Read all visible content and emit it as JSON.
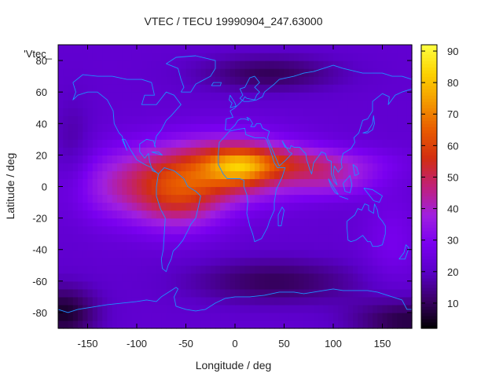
{
  "chart_data": {
    "type": "heatmap",
    "title": "VTEC / TECU 19990904_247.63000",
    "xlabel": "Longitude / deg",
    "ylabel": "Latitude / deg",
    "key_label": "'Vtec_",
    "xlim": [
      -180,
      180
    ],
    "ylim": [
      -90,
      90
    ],
    "xticks": [
      -150,
      -100,
      -50,
      0,
      50,
      100,
      150
    ],
    "yticks": [
      -80,
      -60,
      -40,
      -20,
      0,
      20,
      40,
      60,
      80
    ],
    "colorbar": {
      "min": 2,
      "max": 92,
      "ticks": [
        10,
        20,
        30,
        40,
        50,
        60,
        70,
        80,
        90
      ]
    },
    "colormap": [
      "#000000",
      "#3a0066",
      "#5a00c8",
      "#7a00f0",
      "#a020e0",
      "#c0207a",
      "#d22e12",
      "#e85a00",
      "#f49a00",
      "#fcd200",
      "#ffff40"
    ],
    "coastline_color": "#1e90ff",
    "grid_resolution_deg": 5,
    "background_tec": 22,
    "blobs": [
      {
        "lon": -10,
        "lat": 12,
        "slon": 55,
        "slat": 14,
        "amp": 34
      },
      {
        "lon": 5,
        "lat": 13,
        "slon": 22,
        "slat": 8,
        "amp": 20
      },
      {
        "lon": -55,
        "lat": -8,
        "slon": 32,
        "slat": 14,
        "amp": 22
      },
      {
        "lon": -110,
        "lat": 0,
        "slon": 45,
        "slat": 16,
        "amp": 16
      },
      {
        "lon": 75,
        "lat": 15,
        "slon": 55,
        "slat": 7,
        "amp": 16
      },
      {
        "lon": 100,
        "lat": 3,
        "slon": 32,
        "slat": 7,
        "amp": 12
      },
      {
        "lon": 35,
        "lat": 72,
        "slon": 50,
        "slat": 8,
        "amp": -12
      },
      {
        "lon": 40,
        "lat": -60,
        "slon": 60,
        "slat": 10,
        "amp": -12
      },
      {
        "lon": -175,
        "lat": -80,
        "slon": 25,
        "slat": 12,
        "amp": -16
      },
      {
        "lon": 175,
        "lat": -85,
        "slon": 40,
        "slat": 10,
        "amp": -14
      },
      {
        "lon": -165,
        "lat": 20,
        "slon": 15,
        "slat": 25,
        "amp": -6
      },
      {
        "lon": 160,
        "lat": -35,
        "slon": 20,
        "slat": 20,
        "amp": 6
      }
    ],
    "coastlines": [
      [
        [
          -165,
          66
        ],
        [
          -155,
          71
        ],
        [
          -140,
          70
        ],
        [
          -125,
          70
        ],
        [
          -110,
          68
        ],
        [
          -95,
          68
        ],
        [
          -85,
          66
        ],
        [
          -82,
          58
        ],
        [
          -92,
          58
        ],
        [
          -95,
          52
        ],
        [
          -80,
          52
        ],
        [
          -70,
          60
        ],
        [
          -62,
          58
        ],
        [
          -55,
          52
        ],
        [
          -65,
          45
        ],
        [
          -70,
          42
        ],
        [
          -75,
          36
        ],
        [
          -80,
          32
        ],
        [
          -82,
          26
        ],
        [
          -81,
          25
        ],
        [
          -83,
          29
        ],
        [
          -90,
          30
        ],
        [
          -97,
          27
        ],
        [
          -97,
          22
        ],
        [
          -92,
          18
        ],
        [
          -88,
          21
        ],
        [
          -87,
          16
        ],
        [
          -84,
          10
        ],
        [
          -80,
          9
        ],
        [
          -78,
          8
        ],
        [
          -80,
          9
        ],
        [
          -85,
          12
        ],
        [
          -92,
          14
        ],
        [
          -100,
          17
        ],
        [
          -106,
          23
        ],
        [
          -112,
          30
        ],
        [
          -115,
          30
        ],
        [
          -110,
          23
        ],
        [
          -115,
          32
        ],
        [
          -118,
          34
        ],
        [
          -123,
          40
        ],
        [
          -124,
          48
        ],
        [
          -130,
          55
        ],
        [
          -140,
          60
        ],
        [
          -150,
          60
        ],
        [
          -160,
          58
        ],
        [
          -165,
          55
        ],
        [
          -162,
          60
        ],
        [
          -165,
          66
        ]
      ],
      [
        [
          -78,
          8
        ],
        [
          -72,
          12
        ],
        [
          -62,
          10
        ],
        [
          -52,
          5
        ],
        [
          -48,
          0
        ],
        [
          -40,
          -3
        ],
        [
          -35,
          -6
        ],
        [
          -37,
          -12
        ],
        [
          -40,
          -20
        ],
        [
          -45,
          -24
        ],
        [
          -48,
          -28
        ],
        [
          -53,
          -34
        ],
        [
          -58,
          -38
        ],
        [
          -63,
          -41
        ],
        [
          -65,
          -46
        ],
        [
          -68,
          -50
        ],
        [
          -70,
          -54
        ],
        [
          -74,
          -52
        ],
        [
          -75,
          -46
        ],
        [
          -73,
          -40
        ],
        [
          -72,
          -30
        ],
        [
          -71,
          -20
        ],
        [
          -76,
          -14
        ],
        [
          -80,
          -6
        ],
        [
          -80,
          0
        ],
        [
          -78,
          8
        ]
      ],
      [
        [
          -17,
          21
        ],
        [
          -16,
          28
        ],
        [
          -10,
          32
        ],
        [
          -6,
          35
        ],
        [
          0,
          36
        ],
        [
          10,
          37
        ],
        [
          11,
          33
        ],
        [
          20,
          31
        ],
        [
          30,
          31
        ],
        [
          32,
          30
        ],
        [
          35,
          25
        ],
        [
          40,
          15
        ],
        [
          43,
          12
        ],
        [
          51,
          12
        ],
        [
          48,
          6
        ],
        [
          42,
          -2
        ],
        [
          40,
          -10
        ],
        [
          40,
          -15
        ],
        [
          35,
          -22
        ],
        [
          33,
          -26
        ],
        [
          27,
          -33
        ],
        [
          20,
          -35
        ],
        [
          18,
          -30
        ],
        [
          15,
          -25
        ],
        [
          12,
          -17
        ],
        [
          13,
          -10
        ],
        [
          12,
          -5
        ],
        [
          9,
          0
        ],
        [
          9,
          4
        ],
        [
          5,
          5
        ],
        [
          -2,
          5
        ],
        [
          -8,
          5
        ],
        [
          -12,
          8
        ],
        [
          -17,
          14
        ],
        [
          -17,
          21
        ]
      ],
      [
        [
          -10,
          36
        ],
        [
          -9,
          43
        ],
        [
          -2,
          44
        ],
        [
          -5,
          48
        ],
        [
          0,
          50
        ],
        [
          5,
          53
        ],
        [
          8,
          55
        ],
        [
          10,
          57
        ],
        [
          12,
          56
        ],
        [
          20,
          55
        ],
        [
          22,
          58
        ],
        [
          25,
          60
        ],
        [
          20,
          63
        ],
        [
          25,
          66
        ],
        [
          20,
          70
        ],
        [
          15,
          69
        ],
        [
          10,
          63
        ],
        [
          5,
          62
        ],
        [
          8,
          58
        ],
        [
          5,
          56
        ],
        [
          9,
          54
        ],
        [
          14,
          54
        ],
        [
          22,
          55
        ],
        [
          28,
          57
        ],
        [
          30,
          60
        ],
        [
          40,
          65
        ],
        [
          45,
          68
        ],
        [
          60,
          70
        ],
        [
          70,
          72
        ],
        [
          80,
          73
        ],
        [
          100,
          77
        ],
        [
          110,
          75
        ],
        [
          130,
          72
        ],
        [
          150,
          72
        ],
        [
          160,
          70
        ],
        [
          170,
          70
        ],
        [
          180,
          68
        ]
      ],
      [
        [
          180,
          62
        ],
        [
          170,
          60
        ],
        [
          163,
          58
        ],
        [
          156,
          52
        ],
        [
          157,
          57
        ],
        [
          150,
          59
        ],
        [
          140,
          54
        ],
        [
          140,
          48
        ],
        [
          135,
          43
        ],
        [
          130,
          42
        ],
        [
          128,
          38
        ],
        [
          126,
          34
        ],
        [
          121,
          31
        ],
        [
          122,
          28
        ],
        [
          118,
          24
        ],
        [
          110,
          21
        ],
        [
          108,
          16
        ],
        [
          109,
          12
        ],
        [
          106,
          10
        ],
        [
          105,
          9
        ],
        [
          101,
          13
        ],
        [
          100,
          8
        ],
        [
          104,
          1
        ],
        [
          101,
          3
        ],
        [
          98,
          8
        ],
        [
          98,
          16
        ],
        [
          94,
          17
        ],
        [
          92,
          21
        ],
        [
          88,
          22
        ],
        [
          86,
          20
        ],
        [
          80,
          15
        ],
        [
          78,
          8
        ],
        [
          76,
          11
        ],
        [
          73,
          17
        ],
        [
          72,
          21
        ],
        [
          70,
          22
        ],
        [
          66,
          25
        ],
        [
          60,
          25
        ],
        [
          57,
          26
        ],
        [
          56,
          24
        ],
        [
          51,
          25
        ],
        [
          48,
          29
        ],
        [
          55,
          22
        ],
        [
          58,
          21
        ],
        [
          52,
          17
        ],
        [
          45,
          13
        ],
        [
          43,
          16
        ],
        [
          39,
          22
        ],
        [
          35,
          28
        ],
        [
          33,
          31
        ],
        [
          35,
          35
        ],
        [
          28,
          37
        ],
        [
          26,
          40
        ],
        [
          22,
          40
        ],
        [
          20,
          38
        ],
        [
          16,
          38
        ],
        [
          18,
          40
        ],
        [
          15,
          43
        ],
        [
          12,
          44
        ],
        [
          14,
          42
        ],
        [
          10,
          43
        ],
        [
          6,
          43
        ],
        [
          3,
          42
        ],
        [
          0,
          39
        ],
        [
          -5,
          36
        ],
        [
          -10,
          36
        ]
      ],
      [
        [
          114,
          -22
        ],
        [
          114,
          -26
        ],
        [
          115,
          -34
        ],
        [
          118,
          -35
        ],
        [
          123,
          -34
        ],
        [
          130,
          -31
        ],
        [
          135,
          -35
        ],
        [
          138,
          -35
        ],
        [
          140,
          -38
        ],
        [
          145,
          -38
        ],
        [
          150,
          -37
        ],
        [
          153,
          -30
        ],
        [
          153,
          -25
        ],
        [
          150,
          -22
        ],
        [
          146,
          -19
        ],
        [
          145,
          -15
        ],
        [
          142,
          -11
        ],
        [
          141,
          -17
        ],
        [
          136,
          -15
        ],
        [
          136,
          -12
        ],
        [
          132,
          -11
        ],
        [
          129,
          -15
        ],
        [
          125,
          -14
        ],
        [
          122,
          -18
        ],
        [
          114,
          -22
        ]
      ],
      [
        [
          -55,
          60
        ],
        [
          -45,
          60
        ],
        [
          -40,
          65
        ],
        [
          -25,
          70
        ],
        [
          -20,
          75
        ],
        [
          -20,
          80
        ],
        [
          -40,
          83
        ],
        [
          -60,
          82
        ],
        [
          -70,
          78
        ],
        [
          -58,
          75
        ],
        [
          -55,
          68
        ],
        [
          -52,
          63
        ],
        [
          -55,
          60
        ]
      ],
      [
        [
          130,
          34
        ],
        [
          135,
          34
        ],
        [
          140,
          36
        ],
        [
          142,
          40
        ],
        [
          141,
          45
        ],
        [
          140,
          40
        ],
        [
          135,
          35
        ],
        [
          130,
          34
        ]
      ],
      [
        [
          95,
          5
        ],
        [
          100,
          0
        ],
        [
          105,
          -5
        ],
        [
          102,
          -4
        ],
        [
          98,
          0
        ],
        [
          95,
          5
        ]
      ],
      [
        [
          106,
          -6
        ],
        [
          115,
          -8
        ],
        [
          110,
          -7
        ],
        [
          106,
          -6
        ]
      ],
      [
        [
          110,
          2
        ],
        [
          112,
          -3
        ],
        [
          117,
          -4
        ],
        [
          119,
          1
        ],
        [
          117,
          7
        ],
        [
          110,
          2
        ]
      ],
      [
        [
          131,
          -1
        ],
        [
          140,
          -2
        ],
        [
          150,
          -6
        ],
        [
          147,
          -10
        ],
        [
          141,
          -9
        ],
        [
          131,
          -1
        ]
      ],
      [
        [
          44,
          -25
        ],
        [
          47,
          -25
        ],
        [
          50,
          -15
        ],
        [
          48,
          -13
        ],
        [
          44,
          -18
        ],
        [
          44,
          -25
        ]
      ],
      [
        [
          -5,
          50
        ],
        [
          1,
          51
        ],
        [
          0,
          53
        ],
        [
          -3,
          56
        ],
        [
          -5,
          58
        ],
        [
          -6,
          55
        ],
        [
          -3,
          53
        ],
        [
          -5,
          50
        ]
      ],
      [
        [
          -24,
          64
        ],
        [
          -15,
          64
        ],
        [
          -14,
          66
        ],
        [
          -22,
          66
        ],
        [
          -24,
          64
        ]
      ],
      [
        [
          172,
          -42
        ],
        [
          174,
          -37
        ],
        [
          177,
          -39
        ],
        [
          173,
          -46
        ],
        [
          167,
          -46
        ],
        [
          172,
          -42
        ]
      ],
      [
        [
          120,
          14
        ],
        [
          124,
          12
        ],
        [
          126,
          8
        ],
        [
          122,
          7
        ],
        [
          120,
          14
        ]
      ],
      [
        [
          -85,
          22
        ],
        [
          -78,
          22
        ],
        [
          -74,
          20
        ],
        [
          -80,
          21
        ],
        [
          -85,
          22
        ]
      ],
      [
        [
          -180,
          -78
        ],
        [
          -170,
          -80
        ],
        [
          -160,
          -78
        ],
        [
          -150,
          -77
        ],
        [
          -140,
          -76
        ],
        [
          -130,
          -75
        ],
        [
          -115,
          -74
        ],
        [
          -100,
          -73
        ],
        [
          -90,
          -72
        ],
        [
          -80,
          -73
        ],
        [
          -75,
          -70
        ],
        [
          -65,
          -66
        ],
        [
          -60,
          -64
        ],
        [
          -58,
          -65
        ],
        [
          -62,
          -70
        ],
        [
          -60,
          -76
        ],
        [
          -50,
          -78
        ],
        [
          -40,
          -79
        ],
        [
          -30,
          -78
        ],
        [
          -20,
          -74
        ],
        [
          -10,
          -71
        ],
        [
          0,
          -70
        ],
        [
          15,
          -70
        ],
        [
          30,
          -69
        ],
        [
          45,
          -67
        ],
        [
          60,
          -67
        ],
        [
          70,
          -68
        ],
        [
          80,
          -67
        ],
        [
          90,
          -66
        ],
        [
          100,
          -65
        ],
        [
          110,
          -66
        ],
        [
          120,
          -66
        ],
        [
          135,
          -66
        ],
        [
          145,
          -67
        ],
        [
          160,
          -70
        ],
        [
          170,
          -72
        ],
        [
          175,
          -78
        ],
        [
          180,
          -78
        ]
      ]
    ]
  }
}
